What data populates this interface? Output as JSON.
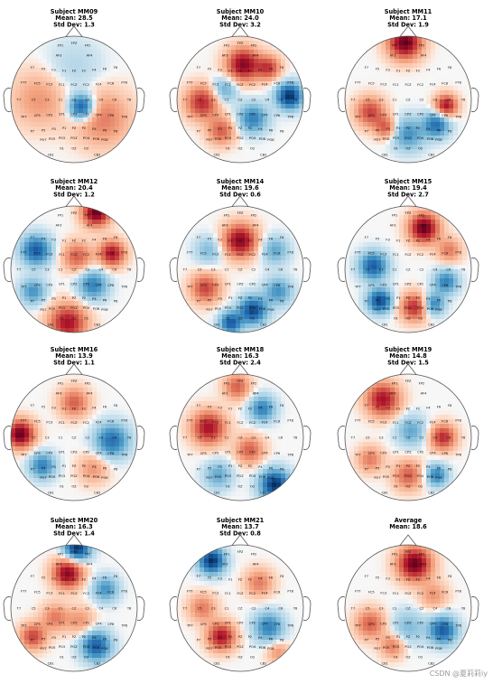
{
  "watermark": "CSDN @夏莉莉iy",
  "chart_data": {
    "type": "heatmap",
    "colormap": "RdBu_r",
    "electrodes": [
      "FP1",
      "FPZ",
      "FP2",
      "AF3",
      "AF4",
      "F7",
      "F5",
      "F3",
      "F1",
      "FZ",
      "F2",
      "F4",
      "F6",
      "F8",
      "FT7",
      "FC5",
      "FC3",
      "FC1",
      "FCZ",
      "FC2",
      "FC4",
      "FC6",
      "FT8",
      "T7",
      "C5",
      "C3",
      "C1",
      "CZ",
      "C2",
      "C4",
      "C6",
      "T8",
      "TP7",
      "CP5",
      "CP3",
      "CP1",
      "CPZ",
      "CP2",
      "CP4",
      "CP6",
      "TP8",
      "P7",
      "P5",
      "P3",
      "P1",
      "PZ",
      "P2",
      "P4",
      "P6",
      "P8",
      "PO7",
      "PO5",
      "PO3",
      "POZ",
      "PO4",
      "PO6",
      "PO8",
      "CB1",
      "O1",
      "OZ",
      "O2",
      "CB2"
    ],
    "panels": [
      {
        "title": "Subject MM09",
        "mean_label": "Mean: 28.5",
        "std_label": "Std Dev: 1.3",
        "hotspots": [
          {
            "x": 0.12,
            "y": 0.12,
            "v": -0.9,
            "s": 0.14
          },
          {
            "x": 0.45,
            "y": 0.3,
            "v": 0.4,
            "s": 0.3
          },
          {
            "x": -0.55,
            "y": 0.0,
            "v": 0.3,
            "s": 0.3
          },
          {
            "x": 0.0,
            "y": -0.5,
            "v": -0.15,
            "s": 0.3
          }
        ]
      },
      {
        "title": "Subject MM10",
        "mean_label": "Mean: 24.0",
        "std_label": "Std Dev: 3.2",
        "hotspots": [
          {
            "x": 0.05,
            "y": -0.55,
            "v": 0.9,
            "s": 0.18
          },
          {
            "x": 0.78,
            "y": -0.05,
            "v": -1.0,
            "s": 0.14
          },
          {
            "x": -0.6,
            "y": 0.05,
            "v": 0.7,
            "s": 0.18
          },
          {
            "x": 0.2,
            "y": 0.3,
            "v": -0.6,
            "s": 0.16
          },
          {
            "x": -0.3,
            "y": 0.5,
            "v": 0.5,
            "s": 0.15
          },
          {
            "x": 0.45,
            "y": -0.5,
            "v": 0.6,
            "s": 0.13
          },
          {
            "x": -0.25,
            "y": -0.15,
            "v": -0.4,
            "s": 0.14
          }
        ]
      },
      {
        "title": "Subject MM11",
        "mean_label": "Mean: 17.1",
        "std_label": "Std Dev: 1.9",
        "hotspots": [
          {
            "x": -0.05,
            "y": -0.9,
            "v": 1.0,
            "s": 0.18
          },
          {
            "x": -0.6,
            "y": 0.2,
            "v": 0.6,
            "s": 0.16
          },
          {
            "x": 0.6,
            "y": 0.1,
            "v": 0.8,
            "s": 0.12
          },
          {
            "x": 0.45,
            "y": 0.4,
            "v": -0.7,
            "s": 0.14
          },
          {
            "x": 0.0,
            "y": 0.55,
            "v": -0.5,
            "s": 0.18
          },
          {
            "x": -0.35,
            "y": 0.45,
            "v": 0.5,
            "s": 0.12
          }
        ]
      },
      {
        "title": "Subject MM12",
        "mean_label": "Mean: 20.4",
        "std_label": "Std Dev: 1.2",
        "hotspots": [
          {
            "x": 0.35,
            "y": -0.9,
            "v": 1.0,
            "s": 0.15
          },
          {
            "x": -0.6,
            "y": -0.3,
            "v": -0.8,
            "s": 0.16
          },
          {
            "x": 0.6,
            "y": -0.25,
            "v": 0.8,
            "s": 0.14
          },
          {
            "x": -0.1,
            "y": 0.85,
            "v": 0.8,
            "s": 0.2
          },
          {
            "x": 0.3,
            "y": 0.25,
            "v": -0.6,
            "s": 0.16
          },
          {
            "x": -0.65,
            "y": 0.35,
            "v": -0.5,
            "s": 0.14
          },
          {
            "x": 0.05,
            "y": -0.2,
            "v": 0.5,
            "s": 0.16
          }
        ]
      },
      {
        "title": "Subject MM14",
        "mean_label": "Mean: 19.6",
        "std_label": "Std Dev: 0.6",
        "hotspots": [
          {
            "x": 0.0,
            "y": -0.45,
            "v": 0.9,
            "s": 0.18
          },
          {
            "x": -0.55,
            "y": 0.3,
            "v": 0.6,
            "s": 0.16
          },
          {
            "x": 0.2,
            "y": 0.65,
            "v": -0.9,
            "s": 0.15
          },
          {
            "x": -0.15,
            "y": 0.85,
            "v": -0.8,
            "s": 0.12
          },
          {
            "x": 0.6,
            "y": 0.35,
            "v": -0.5,
            "s": 0.15
          },
          {
            "x": 0.55,
            "y": -0.3,
            "v": -0.4,
            "s": 0.15
          },
          {
            "x": -0.5,
            "y": -0.3,
            "v": -0.3,
            "s": 0.15
          }
        ]
      },
      {
        "title": "Subject MM15",
        "mean_label": "Mean: 19.4",
        "std_label": "Std Dev: 2.7",
        "hotspots": [
          {
            "x": 0.25,
            "y": -0.65,
            "v": 1.0,
            "s": 0.16
          },
          {
            "x": -0.55,
            "y": -0.05,
            "v": -0.8,
            "s": 0.15
          },
          {
            "x": -0.45,
            "y": 0.5,
            "v": -0.9,
            "s": 0.13
          },
          {
            "x": 0.1,
            "y": 0.6,
            "v": 0.7,
            "s": 0.15
          },
          {
            "x": 0.6,
            "y": 0.2,
            "v": -0.6,
            "s": 0.13
          },
          {
            "x": 0.4,
            "y": 0.55,
            "v": -0.6,
            "s": 0.12
          },
          {
            "x": 0.65,
            "y": -0.3,
            "v": 0.4,
            "s": 0.13
          }
        ]
      },
      {
        "title": "Subject MM16",
        "mean_label": "Mean: 13.9",
        "std_label": "Std Dev: 1.1",
        "hotspots": [
          {
            "x": -0.85,
            "y": -0.05,
            "v": 1.0,
            "s": 0.15
          },
          {
            "x": 0.6,
            "y": 0.05,
            "v": -0.7,
            "s": 0.18
          },
          {
            "x": -0.5,
            "y": 0.45,
            "v": -0.6,
            "s": 0.14
          },
          {
            "x": 0.0,
            "y": -0.55,
            "v": 0.5,
            "s": 0.16
          },
          {
            "x": 0.3,
            "y": 0.5,
            "v": 0.3,
            "s": 0.16
          }
        ]
      },
      {
        "title": "Subject MM18",
        "mean_label": "Mean: 16.3",
        "std_label": "Std Dev: 2.4",
        "hotspots": [
          {
            "x": 0.55,
            "y": 0.75,
            "v": -1.0,
            "s": 0.16
          },
          {
            "x": -0.5,
            "y": -0.15,
            "v": 0.8,
            "s": 0.18
          },
          {
            "x": 0.35,
            "y": -0.45,
            "v": -0.6,
            "s": 0.14
          },
          {
            "x": -0.35,
            "y": 0.6,
            "v": -0.4,
            "s": 0.15
          },
          {
            "x": 0.15,
            "y": 0.2,
            "v": 0.5,
            "s": 0.15
          },
          {
            "x": -0.05,
            "y": -0.8,
            "v": 0.5,
            "s": 0.14
          }
        ]
      },
      {
        "title": "Subject MM19",
        "mean_label": "Mean: 14.8",
        "std_label": "Std Dev: 1.5",
        "hotspots": [
          {
            "x": -0.4,
            "y": -0.6,
            "v": 0.8,
            "s": 0.18
          },
          {
            "x": 0.55,
            "y": 0.0,
            "v": 0.7,
            "s": 0.14
          },
          {
            "x": 0.05,
            "y": -0.1,
            "v": -0.4,
            "s": 0.16
          },
          {
            "x": 0.0,
            "y": 0.6,
            "v": 0.5,
            "s": 0.16
          },
          {
            "x": 0.45,
            "y": 0.6,
            "v": -0.6,
            "s": 0.12
          },
          {
            "x": -0.6,
            "y": 0.35,
            "v": 0.4,
            "s": 0.14
          }
        ]
      },
      {
        "title": "Subject MM20",
        "mean_label": "Mean: 16.3",
        "std_label": "Std Dev: 1.4",
        "hotspots": [
          {
            "x": 0.05,
            "y": -0.95,
            "v": -1.0,
            "s": 0.14
          },
          {
            "x": -0.1,
            "y": -0.55,
            "v": 0.9,
            "s": 0.16
          },
          {
            "x": 0.35,
            "y": 0.6,
            "v": -0.8,
            "s": 0.16
          },
          {
            "x": -0.65,
            "y": 0.45,
            "v": 0.6,
            "s": 0.14
          },
          {
            "x": 0.5,
            "y": -0.3,
            "v": -0.5,
            "s": 0.14
          },
          {
            "x": -0.3,
            "y": 0.15,
            "v": 0.4,
            "s": 0.15
          },
          {
            "x": 0.1,
            "y": 0.2,
            "v": 0.3,
            "s": 0.15
          }
        ]
      },
      {
        "title": "Subject MM21",
        "mean_label": "Mean: 13.7",
        "std_label": "Std Dev: 0.8",
        "hotspots": [
          {
            "x": -0.45,
            "y": -0.75,
            "v": -1.0,
            "s": 0.14
          },
          {
            "x": -0.3,
            "y": 0.45,
            "v": 0.8,
            "s": 0.15
          },
          {
            "x": 0.45,
            "y": 0.3,
            "v": -0.6,
            "s": 0.16
          },
          {
            "x": 0.3,
            "y": -0.4,
            "v": 0.4,
            "s": 0.15
          },
          {
            "x": -0.6,
            "y": 0.0,
            "v": 0.4,
            "s": 0.15
          },
          {
            "x": 0.6,
            "y": 0.7,
            "v": 0.3,
            "s": 0.12
          }
        ]
      },
      {
        "title": "Average",
        "mean_label": "Mean: 18.6",
        "std_label": "",
        "hotspots": [
          {
            "x": 0.1,
            "y": -0.7,
            "v": 1.0,
            "s": 0.18
          },
          {
            "x": 0.55,
            "y": 0.35,
            "v": -0.8,
            "s": 0.15
          },
          {
            "x": -0.6,
            "y": 0.25,
            "v": 0.5,
            "s": 0.16
          },
          {
            "x": 0.0,
            "y": 0.3,
            "v": -0.3,
            "s": 0.18
          },
          {
            "x": -0.25,
            "y": 0.6,
            "v": 0.4,
            "s": 0.13
          },
          {
            "x": 0.4,
            "y": -0.2,
            "v": 0.3,
            "s": 0.15
          }
        ]
      }
    ]
  }
}
